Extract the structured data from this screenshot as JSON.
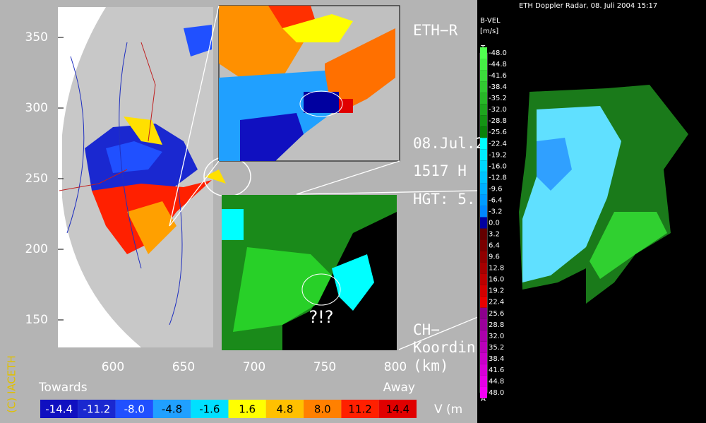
{
  "left_panel": {
    "y_axis": {
      "ticks": [
        350,
        300,
        250,
        200,
        150
      ]
    },
    "x_axis": {
      "ticks": [
        600,
        650,
        700,
        750,
        800
      ]
    },
    "side_texts": [
      "ETH−R",
      "08.Jul.2",
      "1517 H",
      "HGT: 5.",
      "CH−",
      "Koordin",
      "(km)"
    ],
    "inset_label": "?!?",
    "copyright": "(C) IACETH",
    "colorbar": {
      "left_label": "Towards",
      "right_label": "Away",
      "unit_label": "V  (m",
      "labels": [
        "-14.4",
        "-11.2",
        "-8.0",
        "-4.8",
        "-1.6",
        "1.6",
        "4.8",
        "8.0",
        "11.2",
        "14.4"
      ]
    }
  },
  "right_panel": {
    "title": "ETH Doppler Radar, 08. Juli 2004 15:17",
    "scale_title": "B-VEL",
    "scale_unit": "[m/s]",
    "top_letter": "T",
    "bottom_letter": "A",
    "scale_labels": [
      "-48.0",
      "-44.8",
      "-41.6",
      "-38.4",
      "-35.2",
      "-32.0",
      "-28.8",
      "-25.6",
      "-22.4",
      "-19.2",
      "-16.0",
      "-12.8",
      "-9.6",
      "-6.4",
      "-3.2",
      "0.0",
      "3.2",
      "6.4",
      "9.6",
      "12.8",
      "16.0",
      "19.2",
      "22.4",
      "25.6",
      "28.8",
      "32.0",
      "35.2",
      "38.4",
      "41.6",
      "44.8",
      "48.0"
    ]
  }
}
